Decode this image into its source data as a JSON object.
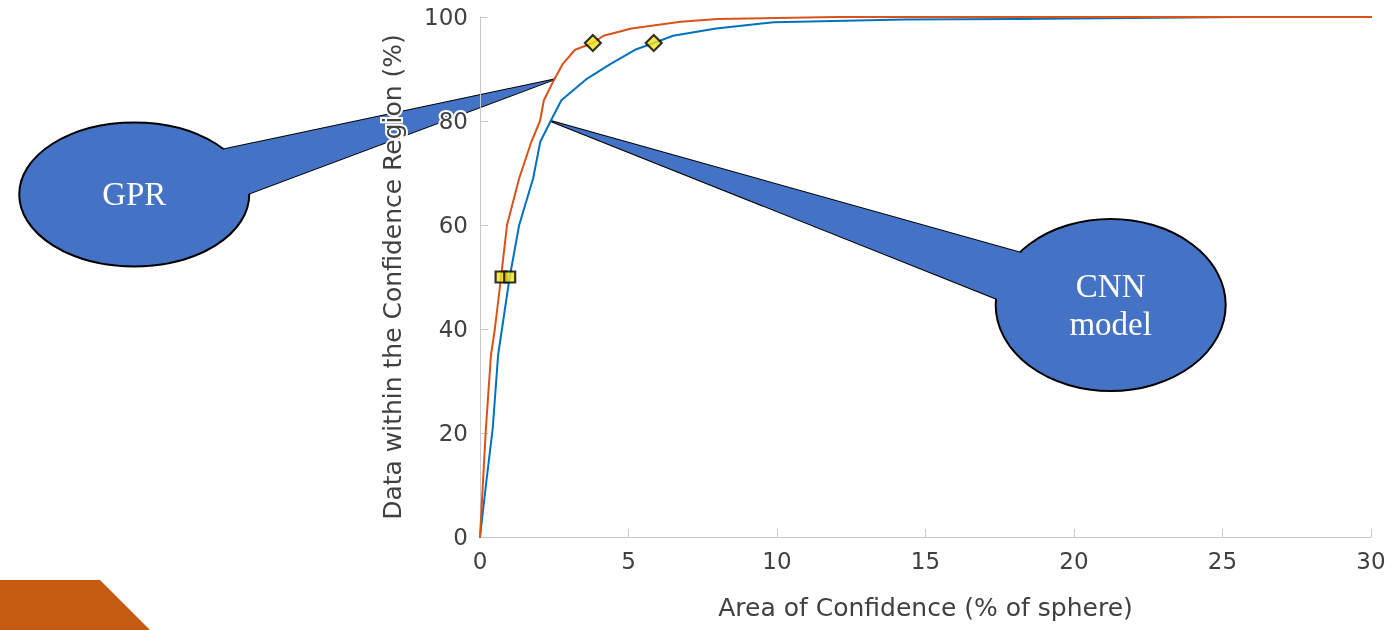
{
  "chart_data": {
    "type": "line",
    "xlabel": "Area of Confidence (% of sphere)",
    "ylabel": "Data within the Confidence Region (%)",
    "xlim": [
      0,
      30
    ],
    "xticks": [
      0,
      5,
      10,
      15,
      20,
      25,
      30
    ],
    "ylim": [
      0,
      100
    ],
    "yticks": [
      0,
      20,
      40,
      60,
      80,
      100
    ],
    "grid": false,
    "marker": "none",
    "line_style": "solid",
    "series": [
      {
        "color": "#d95319",
        "x": [
          0,
          0.2,
          0.37,
          0.5,
          0.71,
          0.91,
          1.32,
          1.73,
          2.02,
          2.15,
          2.5,
          2.79,
          3.2,
          3.8,
          4.16,
          5.1,
          6.76,
          8,
          12,
          30
        ],
        "values": [
          0,
          21,
          35,
          40,
          50,
          60,
          69,
          76,
          80,
          84,
          88,
          91,
          93.7,
          95,
          96.4,
          97.8,
          99.1,
          99.6,
          100,
          100
        ]
      },
      {
        "color": "#0072bd",
        "x": [
          0,
          0.2,
          0.43,
          0.61,
          1.0,
          1.32,
          1.79,
          2.03,
          2.38,
          2.74,
          3.57,
          4.4,
          5.22,
          5.85,
          6.5,
          7.95,
          9.9,
          14.3,
          20,
          25.6,
          30
        ],
        "values": [
          0,
          10,
          21,
          35,
          50,
          60,
          69,
          76,
          80,
          84,
          88,
          91,
          93.7,
          95,
          96.4,
          97.8,
          99,
          99.5,
          99.7,
          100,
          100
        ]
      },
      {
        "type": "scatter",
        "marker": "square",
        "color": "#f2e41c",
        "x": [
          0.71,
          1.0
        ],
        "values": [
          50,
          50
        ]
      },
      {
        "type": "scatter",
        "marker": "diamond",
        "color": "#f2e41c",
        "x": [
          3.8,
          5.85
        ],
        "values": [
          95,
          95
        ]
      }
    ],
    "annotations": [
      {
        "text": "GPR",
        "x": 2.5,
        "y": 88
      },
      {
        "text": "CNN model",
        "x": 2.38,
        "y": 80
      }
    ]
  }
}
